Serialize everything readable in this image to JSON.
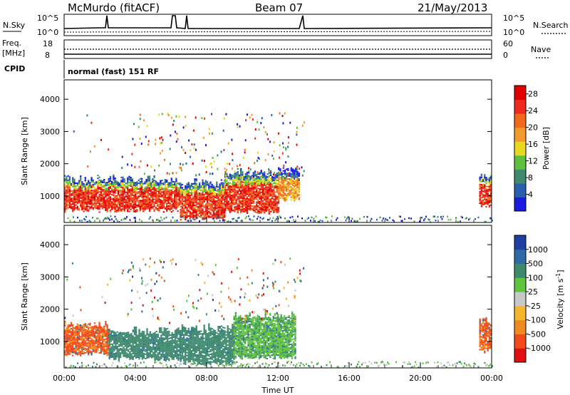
{
  "header": {
    "station": "McMurdo (fitACF)",
    "beam": "Beam 07",
    "date": "21/May/2013"
  },
  "aux_panels": {
    "nsky_label": "N.Sky",
    "nsearch_label": "N.Search",
    "freq_label_1": "Freq.",
    "freq_label_2": "[MHz]",
    "nave_label": "Nave",
    "cpid_label": "CPID",
    "noise_ticks": [
      "10^5",
      "10^0"
    ],
    "freq_ticks": [
      "18",
      "8"
    ],
    "nave_ticks": [
      "60",
      "0"
    ],
    "cpid_text": "normal (fast) 151 RF"
  },
  "colors": {
    "power_scale": [
      "#1a1ae0",
      "#2a5fb0",
      "#3f8a6e",
      "#5fbf3e",
      "#e8d820",
      "#f39a2c",
      "#f06a1e",
      "#ee2a1e",
      "#e10000"
    ],
    "velocity_scale": [
      "#e01010",
      "#f24a1a",
      "#f08a20",
      "#f3b62c",
      "#c8c8c8",
      "#5fc43e",
      "#3f8a6e",
      "#2e6aa8",
      "#1f3fa0"
    ]
  },
  "chart_data": [
    {
      "type": "heatmap",
      "title": "",
      "xlabel": "",
      "ylabel": "Slant Range [km]",
      "x_ticks": [
        "00:00",
        "04:00",
        "08:00",
        "12:00",
        "16:00",
        "20:00",
        "00:00"
      ],
      "xlim_hours": [
        0,
        24
      ],
      "y_ticks": [
        1000,
        2000,
        3000,
        4000
      ],
      "ylim_km": [
        180,
        4600
      ],
      "colorbar": {
        "label": "Power [dB]",
        "ticks": [
          4,
          8,
          12,
          16,
          20,
          24,
          28
        ],
        "range": [
          0,
          30
        ]
      },
      "scatter_regions": [
        {
          "start_h": 0.0,
          "end_h": 6.5,
          "low_km": 550,
          "high_km": 1500,
          "level": "high"
        },
        {
          "start_h": 6.5,
          "end_h": 9.0,
          "low_km": 300,
          "high_km": 1400,
          "level": "high"
        },
        {
          "start_h": 9.0,
          "end_h": 12.0,
          "low_km": 500,
          "high_km": 1700,
          "level": "high"
        },
        {
          "start_h": 12.0,
          "end_h": 13.2,
          "low_km": 900,
          "high_km": 1800,
          "level": "medium"
        },
        {
          "start_h": 23.3,
          "end_h": 24.0,
          "low_km": 700,
          "high_km": 1600,
          "level": "high"
        }
      ]
    },
    {
      "type": "heatmap",
      "title": "",
      "xlabel": "Time UT",
      "ylabel": "Slant Range [km]",
      "x_ticks": [
        "00:00",
        "04:00",
        "08:00",
        "12:00",
        "16:00",
        "20:00",
        "00:00"
      ],
      "xlim_hours": [
        0,
        24
      ],
      "y_ticks": [
        1000,
        2000,
        3000,
        4000
      ],
      "ylim_km": [
        180,
        4600
      ],
      "colorbar": {
        "label": "Velocity [m s^-1]",
        "ticks": [
          "1000",
          "500",
          "100",
          "25",
          "-25",
          "-100",
          "-500",
          "-1000"
        ]
      },
      "scatter_regions": [
        {
          "start_h": 0.0,
          "end_h": 2.5,
          "low_km": 600,
          "high_km": 1500,
          "velocity_class": "-500"
        },
        {
          "start_h": 2.5,
          "end_h": 6.5,
          "low_km": 450,
          "high_km": 1300,
          "velocity_class": "500"
        },
        {
          "start_h": 6.5,
          "end_h": 9.5,
          "low_km": 300,
          "high_km": 1400,
          "velocity_class": "500"
        },
        {
          "start_h": 9.5,
          "end_h": 13.0,
          "low_km": 500,
          "high_km": 1800,
          "velocity_class": "100"
        },
        {
          "start_h": 23.3,
          "end_h": 24.0,
          "low_km": 700,
          "high_km": 1600,
          "velocity_class": "-500"
        }
      ]
    }
  ]
}
